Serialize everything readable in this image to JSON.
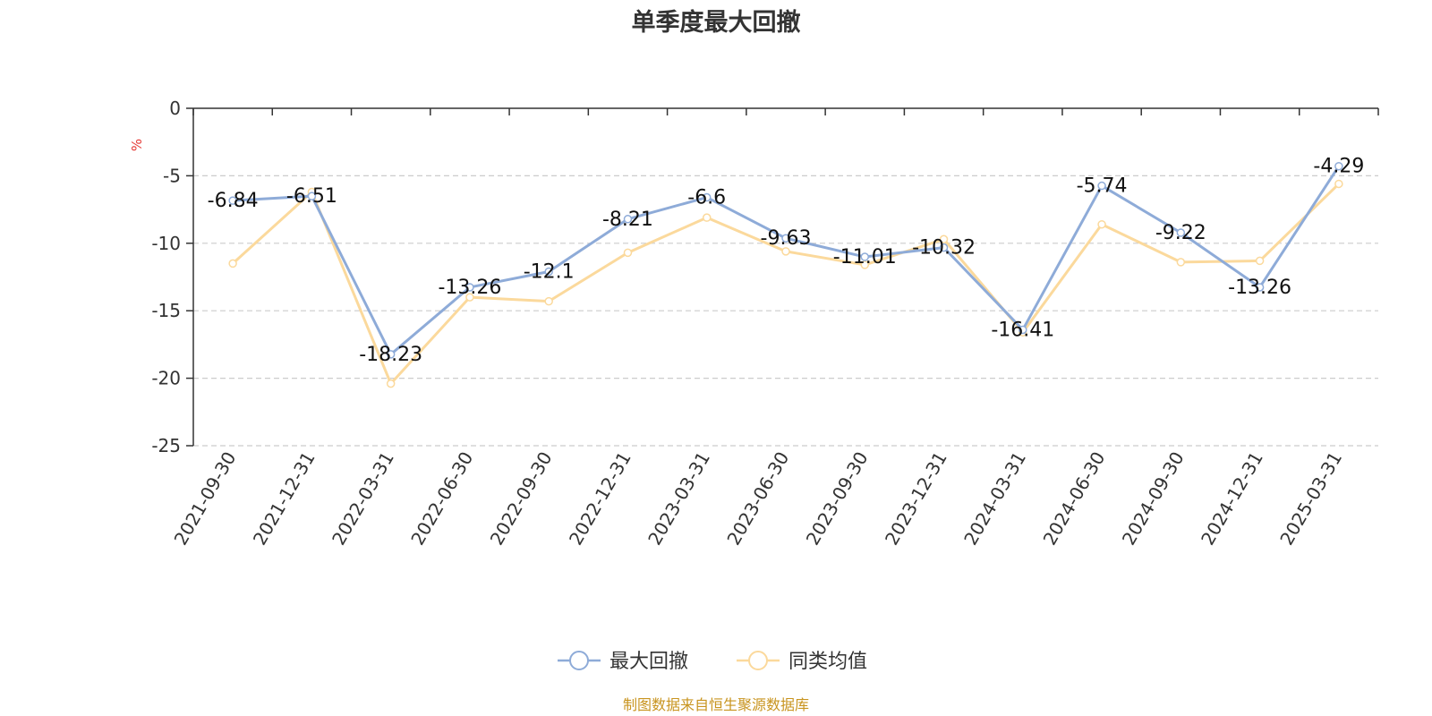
{
  "chart_data": {
    "type": "line",
    "title": "单季度最大回撤",
    "ylabel": "%",
    "ylim": [
      -25,
      0
    ],
    "yticks": [
      0,
      -5,
      -10,
      -15,
      -20,
      -25
    ],
    "grid": true,
    "legend_position": "bottom-center",
    "categories": [
      "2021-09-30",
      "2021-12-31",
      "2022-03-31",
      "2022-06-30",
      "2022-09-30",
      "2022-12-31",
      "2023-03-31",
      "2023-06-30",
      "2023-09-30",
      "2023-12-31",
      "2024-03-31",
      "2024-06-30",
      "2024-09-30",
      "2024-12-31",
      "2025-03-31"
    ],
    "series": [
      {
        "name": "最大回撤",
        "color": "#8eabd8",
        "show_labels": true,
        "values": [
          -6.84,
          -6.51,
          -18.23,
          -13.26,
          -12.1,
          -8.21,
          -6.6,
          -9.63,
          -11.01,
          -10.32,
          -16.41,
          -5.74,
          -9.22,
          -13.26,
          -4.29
        ]
      },
      {
        "name": "同类均值",
        "color": "#fbd99c",
        "show_labels": false,
        "values": [
          -11.5,
          -6.2,
          -20.4,
          -14.0,
          -14.3,
          -10.7,
          -8.1,
          -10.6,
          -11.6,
          -9.7,
          -16.6,
          -8.6,
          -11.4,
          -11.3,
          -5.6
        ]
      }
    ]
  },
  "source": "制图数据来自恒生聚源数据库",
  "colors": {
    "axis": "#333333",
    "grid": "#cccccc",
    "unit": "#e53935",
    "source": "#c8941f"
  }
}
